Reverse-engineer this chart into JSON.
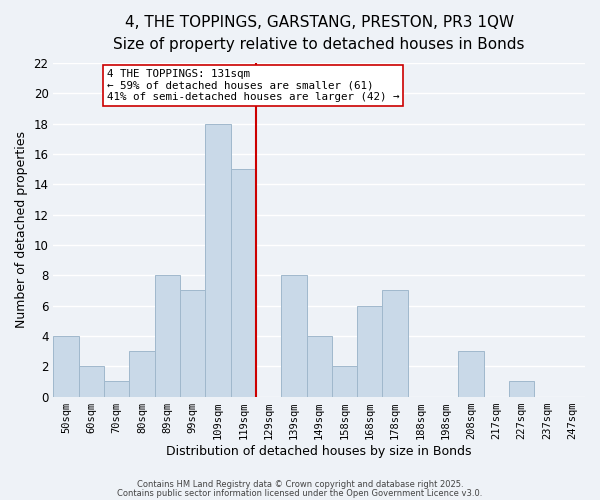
{
  "title": "4, THE TOPPINGS, GARSTANG, PRESTON, PR3 1QW",
  "subtitle": "Size of property relative to detached houses in Bonds",
  "xlabel": "Distribution of detached houses by size in Bonds",
  "ylabel": "Number of detached properties",
  "bar_labels": [
    "50sqm",
    "60sqm",
    "70sqm",
    "80sqm",
    "89sqm",
    "99sqm",
    "109sqm",
    "119sqm",
    "129sqm",
    "139sqm",
    "149sqm",
    "158sqm",
    "168sqm",
    "178sqm",
    "188sqm",
    "198sqm",
    "208sqm",
    "217sqm",
    "227sqm",
    "237sqm",
    "247sqm"
  ],
  "bar_values": [
    4,
    2,
    1,
    3,
    8,
    7,
    18,
    15,
    0,
    8,
    4,
    2,
    6,
    7,
    0,
    0,
    3,
    0,
    1,
    0,
    0
  ],
  "bar_color": "#c9d9e8",
  "bar_edgecolor": "#a0b8cc",
  "vline_color": "#cc0000",
  "annotation_title": "4 THE TOPPINGS: 131sqm",
  "annotation_line1": "← 59% of detached houses are smaller (61)",
  "annotation_line2": "41% of semi-detached houses are larger (42) →",
  "annotation_box_edgecolor": "#cc0000",
  "annotation_box_facecolor": "#ffffff",
  "ylim": [
    0,
    22
  ],
  "yticks": [
    0,
    2,
    4,
    6,
    8,
    10,
    12,
    14,
    16,
    18,
    20,
    22
  ],
  "footer1": "Contains HM Land Registry data © Crown copyright and database right 2025.",
  "footer2": "Contains public sector information licensed under the Open Government Licence v3.0.",
  "background_color": "#eef2f7",
  "grid_color": "#ffffff",
  "title_fontsize": 11,
  "subtitle_fontsize": 9.5
}
